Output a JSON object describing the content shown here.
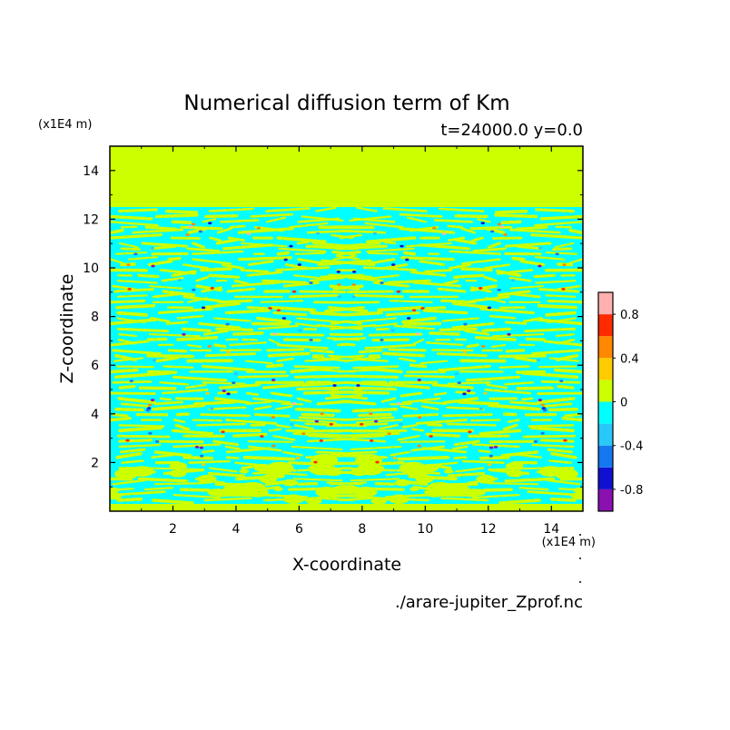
{
  "chart_data": {
    "type": "heatmap",
    "title": "Numerical diffusion term of Km",
    "subtitle": "t=24000.0 y=0.0",
    "xlabel": "X-coordinate",
    "ylabel": "Z-coordinate",
    "x_unit": "(x1E4 m)",
    "y_unit": "(x1E4 m)",
    "xlim": [
      0,
      15
    ],
    "ylim": [
      0,
      15
    ],
    "x_ticks": [
      2,
      4,
      6,
      8,
      10,
      12,
      14
    ],
    "y_ticks": [
      2,
      4,
      6,
      8,
      10,
      12,
      14
    ],
    "x_tick_labels": [
      "2",
      "4",
      "6",
      "8",
      "10",
      "12",
      "14"
    ],
    "y_tick_labels": [
      "2",
      "4",
      "6",
      "8",
      "10",
      "12",
      "14"
    ],
    "source_file": "./arare-jupiter_Zprof.nc",
    "colorbar": {
      "levels": [
        -1.0,
        -0.8,
        -0.6,
        -0.4,
        -0.2,
        0.0,
        0.2,
        0.4,
        0.6,
        0.8,
        1.0
      ],
      "colors": [
        "#8a10b0",
        "#1010d0",
        "#1478f0",
        "#28c8f8",
        "#00ffff",
        "#ccff00",
        "#ffcc00",
        "#ff8800",
        "#ff2a00",
        "#ffb0b0"
      ],
      "tick_values": [
        -0.8,
        -0.4,
        0,
        0.4,
        0.8
      ],
      "tick_labels": [
        "-0.8",
        "-0.4",
        "0",
        "0.4",
        "0.8"
      ]
    },
    "field": {
      "description_of_domain": "negative (cyan) banded region below z≈12.5, zero (yellow-green) above and near surface",
      "active_top_z": 12.5,
      "active_bottom_z": 0.3,
      "background_value": 0.0,
      "band_value": -0.1,
      "extreme_min": -0.9,
      "extreme_max": 0.9
    }
  }
}
